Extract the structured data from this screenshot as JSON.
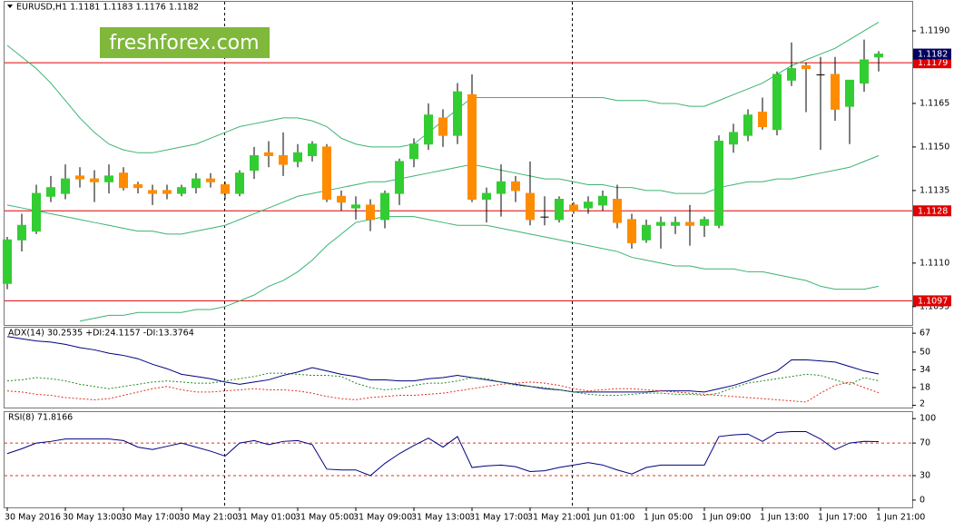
{
  "watermark": "freshforex.com",
  "chart_data": [
    {
      "type": "candlestick",
      "title": "EURUSD,H1  1.1181 1.1183 1.1176 1.1182",
      "categories": [
        "30 May 2016",
        null,
        null,
        null,
        "30 May 13:00",
        null,
        null,
        null,
        "30 May 17:00",
        null,
        null,
        null,
        "30 May 21:00",
        null,
        null,
        null,
        "31 May 01:00",
        null,
        null,
        null,
        "31 May 05:00",
        null,
        null,
        null,
        "31 May 09:00",
        null,
        null,
        null,
        "31 May 13:00",
        null,
        null,
        null,
        "31 May 17:00",
        null,
        null,
        null,
        "31 May 21:00",
        null,
        null,
        null,
        "1 Jun 01:00",
        null,
        null,
        null,
        "1 Jun 05:00",
        null,
        null,
        null,
        "1 Jun 09:00",
        null,
        null,
        null,
        "1 Jun 13:00",
        null,
        null,
        null,
        "1 Jun 17:00",
        null,
        null,
        null,
        "1 Jun 21:00"
      ],
      "open": [
        1.1103,
        1.1118,
        1.1121,
        1.1133,
        1.1134,
        1.114,
        1.1139,
        1.1138,
        1.1141,
        1.1137,
        1.1135,
        1.1135,
        1.1134,
        1.1136,
        1.1139,
        1.1137,
        1.1134,
        1.1142,
        1.1148,
        1.1147,
        1.1145,
        1.1147,
        1.115,
        1.1133,
        1.1129,
        1.113,
        1.1125,
        1.1134,
        1.1146,
        1.1151,
        1.116,
        1.1154,
        1.1168,
        1.1132,
        1.1134,
        1.1138,
        1.1134,
        1.1126,
        1.1125,
        1.113,
        1.1129,
        1.113,
        1.1132,
        1.1125,
        1.1118,
        1.1123,
        1.1123,
        1.1124,
        1.1123,
        1.1123,
        1.1151,
        1.1154,
        1.1162,
        1.1156,
        1.1173,
        1.1178,
        1.1175,
        1.1175,
        1.1164,
        1.1172,
        1.1181
      ],
      "high": [
        1.1119,
        1.1127,
        1.1137,
        1.114,
        1.1144,
        1.1143,
        1.1142,
        1.1144,
        1.1143,
        1.1138,
        1.1137,
        1.1137,
        1.1137,
        1.1141,
        1.1141,
        1.1138,
        1.1142,
        1.115,
        1.1152,
        1.1155,
        1.1151,
        1.1152,
        1.1151,
        1.1135,
        1.1133,
        1.1132,
        1.1135,
        1.1146,
        1.1153,
        1.1165,
        1.1163,
        1.1172,
        1.1175,
        1.1136,
        1.1144,
        1.114,
        1.1145,
        1.1133,
        1.1133,
        1.1131,
        1.1133,
        1.1135,
        1.1137,
        1.1127,
        1.1125,
        1.1126,
        1.1126,
        1.113,
        1.1126,
        1.1154,
        1.1158,
        1.1163,
        1.1167,
        1.1176,
        1.1186,
        1.1179,
        1.1181,
        1.1181,
        1.1173,
        1.1187,
        1.1183
      ],
      "low": [
        1.1101,
        1.1114,
        1.112,
        1.1131,
        1.1132,
        1.1136,
        1.1131,
        1.1134,
        1.1135,
        1.1134,
        1.113,
        1.1132,
        1.1133,
        1.1134,
        1.1136,
        1.1132,
        1.1133,
        1.1139,
        1.1143,
        1.114,
        1.1143,
        1.1145,
        1.1131,
        1.1128,
        1.1125,
        1.1121,
        1.1122,
        1.113,
        1.1143,
        1.1149,
        1.115,
        1.1151,
        1.1131,
        1.1124,
        1.1126,
        1.1131,
        1.1123,
        1.1123,
        1.1124,
        1.1127,
        1.1127,
        1.1128,
        1.1122,
        1.1115,
        1.1117,
        1.1115,
        1.112,
        1.1116,
        1.1119,
        1.1122,
        1.1148,
        1.1152,
        1.1156,
        1.1154,
        1.1171,
        1.1162,
        1.1149,
        1.1159,
        1.1151,
        1.1169,
        1.1176
      ],
      "close": [
        1.1118,
        1.1123,
        1.1134,
        1.1136,
        1.1139,
        1.1139,
        1.1138,
        1.114,
        1.1136,
        1.1136,
        1.1134,
        1.1134,
        1.1136,
        1.1139,
        1.1138,
        1.1134,
        1.1141,
        1.1147,
        1.1147,
        1.1144,
        1.1148,
        1.1151,
        1.1132,
        1.1131,
        1.113,
        1.1125,
        1.1134,
        1.1145,
        1.1151,
        1.1161,
        1.1154,
        1.1169,
        1.1132,
        1.1134,
        1.1138,
        1.1135,
        1.1125,
        1.1126,
        1.1132,
        1.1128,
        1.1131,
        1.1133,
        1.1124,
        1.1117,
        1.1123,
        1.1124,
        1.1124,
        1.1123,
        1.1125,
        1.1152,
        1.1155,
        1.1161,
        1.1157,
        1.1175,
        1.1177,
        1.1177,
        1.1175,
        1.1163,
        1.1173,
        1.118,
        1.1182
      ],
      "up_color": "#32cd32",
      "down_color": "#ff8c00",
      "wick_color": "#000000",
      "series": [
        {
          "color": "#3cb371",
          "values": [
            1.1185,
            1.1181,
            1.1177,
            1.1172,
            1.1166,
            1.116,
            1.1155,
            1.1151,
            1.1149,
            1.1148,
            1.1148,
            1.1149,
            1.115,
            1.1151,
            1.1153,
            1.1155,
            1.1157,
            1.1158,
            1.1159,
            1.116,
            1.116,
            1.1159,
            1.1157,
            1.1153,
            1.1151,
            1.115,
            1.115,
            1.115,
            1.1151,
            1.1155,
            1.1159,
            1.1163,
            1.1167,
            1.1167,
            1.1167,
            1.1167,
            1.1167,
            1.1167,
            1.1167,
            1.1167,
            1.1167,
            1.1167,
            1.1166,
            1.1166,
            1.1166,
            1.1165,
            1.1165,
            1.1164,
            1.1164,
            1.1166,
            1.1168,
            1.117,
            1.1172,
            1.1175,
            1.1178,
            1.118,
            1.1182,
            1.1184,
            1.1187,
            1.119,
            1.1193
          ]
        },
        {
          "color": "#3cb371",
          "values": [
            1.113,
            1.1129,
            1.1128,
            1.1127,
            1.1126,
            1.1125,
            1.1124,
            1.1123,
            1.1122,
            1.1121,
            1.1121,
            1.112,
            1.112,
            1.1121,
            1.1122,
            1.1123,
            1.1125,
            1.1127,
            1.1129,
            1.1131,
            1.1133,
            1.1134,
            1.1135,
            1.1136,
            1.1137,
            1.1138,
            1.1138,
            1.1139,
            1.114,
            1.1141,
            1.1142,
            1.1143,
            1.1144,
            1.1143,
            1.1142,
            1.1141,
            1.114,
            1.1139,
            1.1139,
            1.1138,
            1.1137,
            1.1137,
            1.1136,
            1.1136,
            1.1135,
            1.1135,
            1.1134,
            1.1134,
            1.1134,
            1.1136,
            1.1137,
            1.1138,
            1.1138,
            1.1139,
            1.1139,
            1.114,
            1.1141,
            1.1142,
            1.1143,
            1.1145,
            1.1147
          ]
        },
        {
          "color": "#3cb371",
          "values": [
            null,
            null,
            null,
            null,
            null,
            1.109,
            1.1091,
            1.1092,
            1.1092,
            1.1093,
            1.1093,
            1.1093,
            1.1093,
            1.1094,
            1.1094,
            1.1095,
            1.1097,
            1.1099,
            1.1102,
            1.1104,
            1.1107,
            1.1111,
            1.1116,
            1.112,
            1.1124,
            1.1125,
            1.1126,
            1.1126,
            1.1126,
            1.1125,
            1.1124,
            1.1123,
            1.1123,
            1.1123,
            1.1122,
            1.1121,
            1.112,
            1.1119,
            1.1118,
            1.1117,
            1.1116,
            1.1115,
            1.1114,
            1.1112,
            1.1111,
            1.111,
            1.1109,
            1.1109,
            1.1108,
            1.1108,
            1.1108,
            1.1107,
            1.1107,
            1.1106,
            1.1105,
            1.1104,
            1.1102,
            1.1101,
            1.1101,
            1.1101,
            1.1102
          ]
        }
      ],
      "levels": [
        1.1179,
        1.1128,
        1.1097
      ],
      "level_color": "#e00000",
      "last_price": 1.1182,
      "last_price_color": "#000060",
      "ylim": [
        1.1089,
        1.12
      ],
      "yticks": [
        {
          "value": 1.119,
          "label": "1.1190"
        },
        1.1165,
        {
          "value": 1.115,
          "label": "1.1150"
        },
        1.1135,
        {
          "value": 1.111,
          "label": "1.1110"
        },
        1.1095
      ]
    },
    {
      "type": "line",
      "title": "ADX(14) 30.2535 +DI:24.1157 -DI:13.3764",
      "series": [
        {
          "color": "#000080",
          "values": [
            64,
            62,
            60,
            59,
            57,
            54,
            52,
            49,
            47,
            44,
            39,
            35,
            30,
            28,
            26,
            23,
            21,
            23,
            25,
            29,
            32,
            36,
            33,
            30,
            28,
            25,
            25,
            24,
            24,
            26,
            27,
            29,
            27,
            25,
            23,
            21,
            19,
            17,
            16,
            14,
            14,
            14,
            14,
            14,
            14,
            15,
            15,
            15,
            14,
            17,
            20,
            24,
            29,
            33,
            43,
            43,
            42,
            41,
            37,
            33,
            30.2535
          ]
        },
        {
          "color": "#228b22",
          "style": "dotted",
          "values": [
            24,
            25,
            27,
            26,
            24,
            21,
            19,
            17,
            19,
            21,
            23,
            24,
            23,
            22,
            22,
            24,
            26,
            28,
            31,
            31,
            30,
            29,
            29,
            28,
            22,
            18,
            16,
            17,
            20,
            22,
            22,
            24,
            27,
            26,
            23,
            20,
            19,
            18,
            16,
            14,
            12,
            11,
            11,
            12,
            13,
            13,
            12,
            12,
            11,
            13,
            18,
            22,
            24,
            26,
            28,
            30,
            29,
            25,
            21,
            27,
            24.1157
          ]
        },
        {
          "color": "#e03020",
          "style": "dotted",
          "values": [
            15,
            14,
            12,
            11,
            9,
            8,
            7,
            8,
            11,
            14,
            17,
            19,
            16,
            14,
            14,
            15,
            16,
            17,
            16,
            16,
            15,
            13,
            10,
            8,
            7,
            9,
            10,
            11,
            11,
            12,
            13,
            15,
            17,
            19,
            21,
            22,
            23,
            22,
            20,
            17,
            15,
            16,
            17,
            17,
            16,
            15,
            14,
            13,
            12,
            11,
            10,
            9,
            8,
            7,
            6,
            5,
            13,
            20,
            23,
            18,
            13.3764
          ]
        }
      ],
      "ylim": [
        0,
        72
      ],
      "yticks": [
        67,
        50,
        34,
        18,
        2
      ]
    },
    {
      "type": "line",
      "title": "RSI(8) 71.8166",
      "series": [
        {
          "color": "#000080",
          "values": [
            57,
            63,
            70,
            72,
            75,
            75,
            75,
            75,
            73,
            65,
            62,
            66,
            70,
            65,
            60,
            54,
            70,
            73,
            68,
            72,
            73,
            68,
            38,
            37,
            37,
            30,
            45,
            57,
            67,
            76,
            65,
            78,
            40,
            42,
            43,
            41,
            35,
            36,
            40,
            43,
            46,
            43,
            37,
            32,
            40,
            43,
            43,
            43,
            43,
            78,
            80,
            81,
            72,
            83,
            84,
            84,
            75,
            62,
            70,
            72,
            71.8166
          ]
        }
      ],
      "levels": [
        70,
        30
      ],
      "level_color": "#e03020",
      "ylim": [
        -9,
        108
      ],
      "yticks": [
        100,
        70,
        30,
        0
      ]
    }
  ]
}
